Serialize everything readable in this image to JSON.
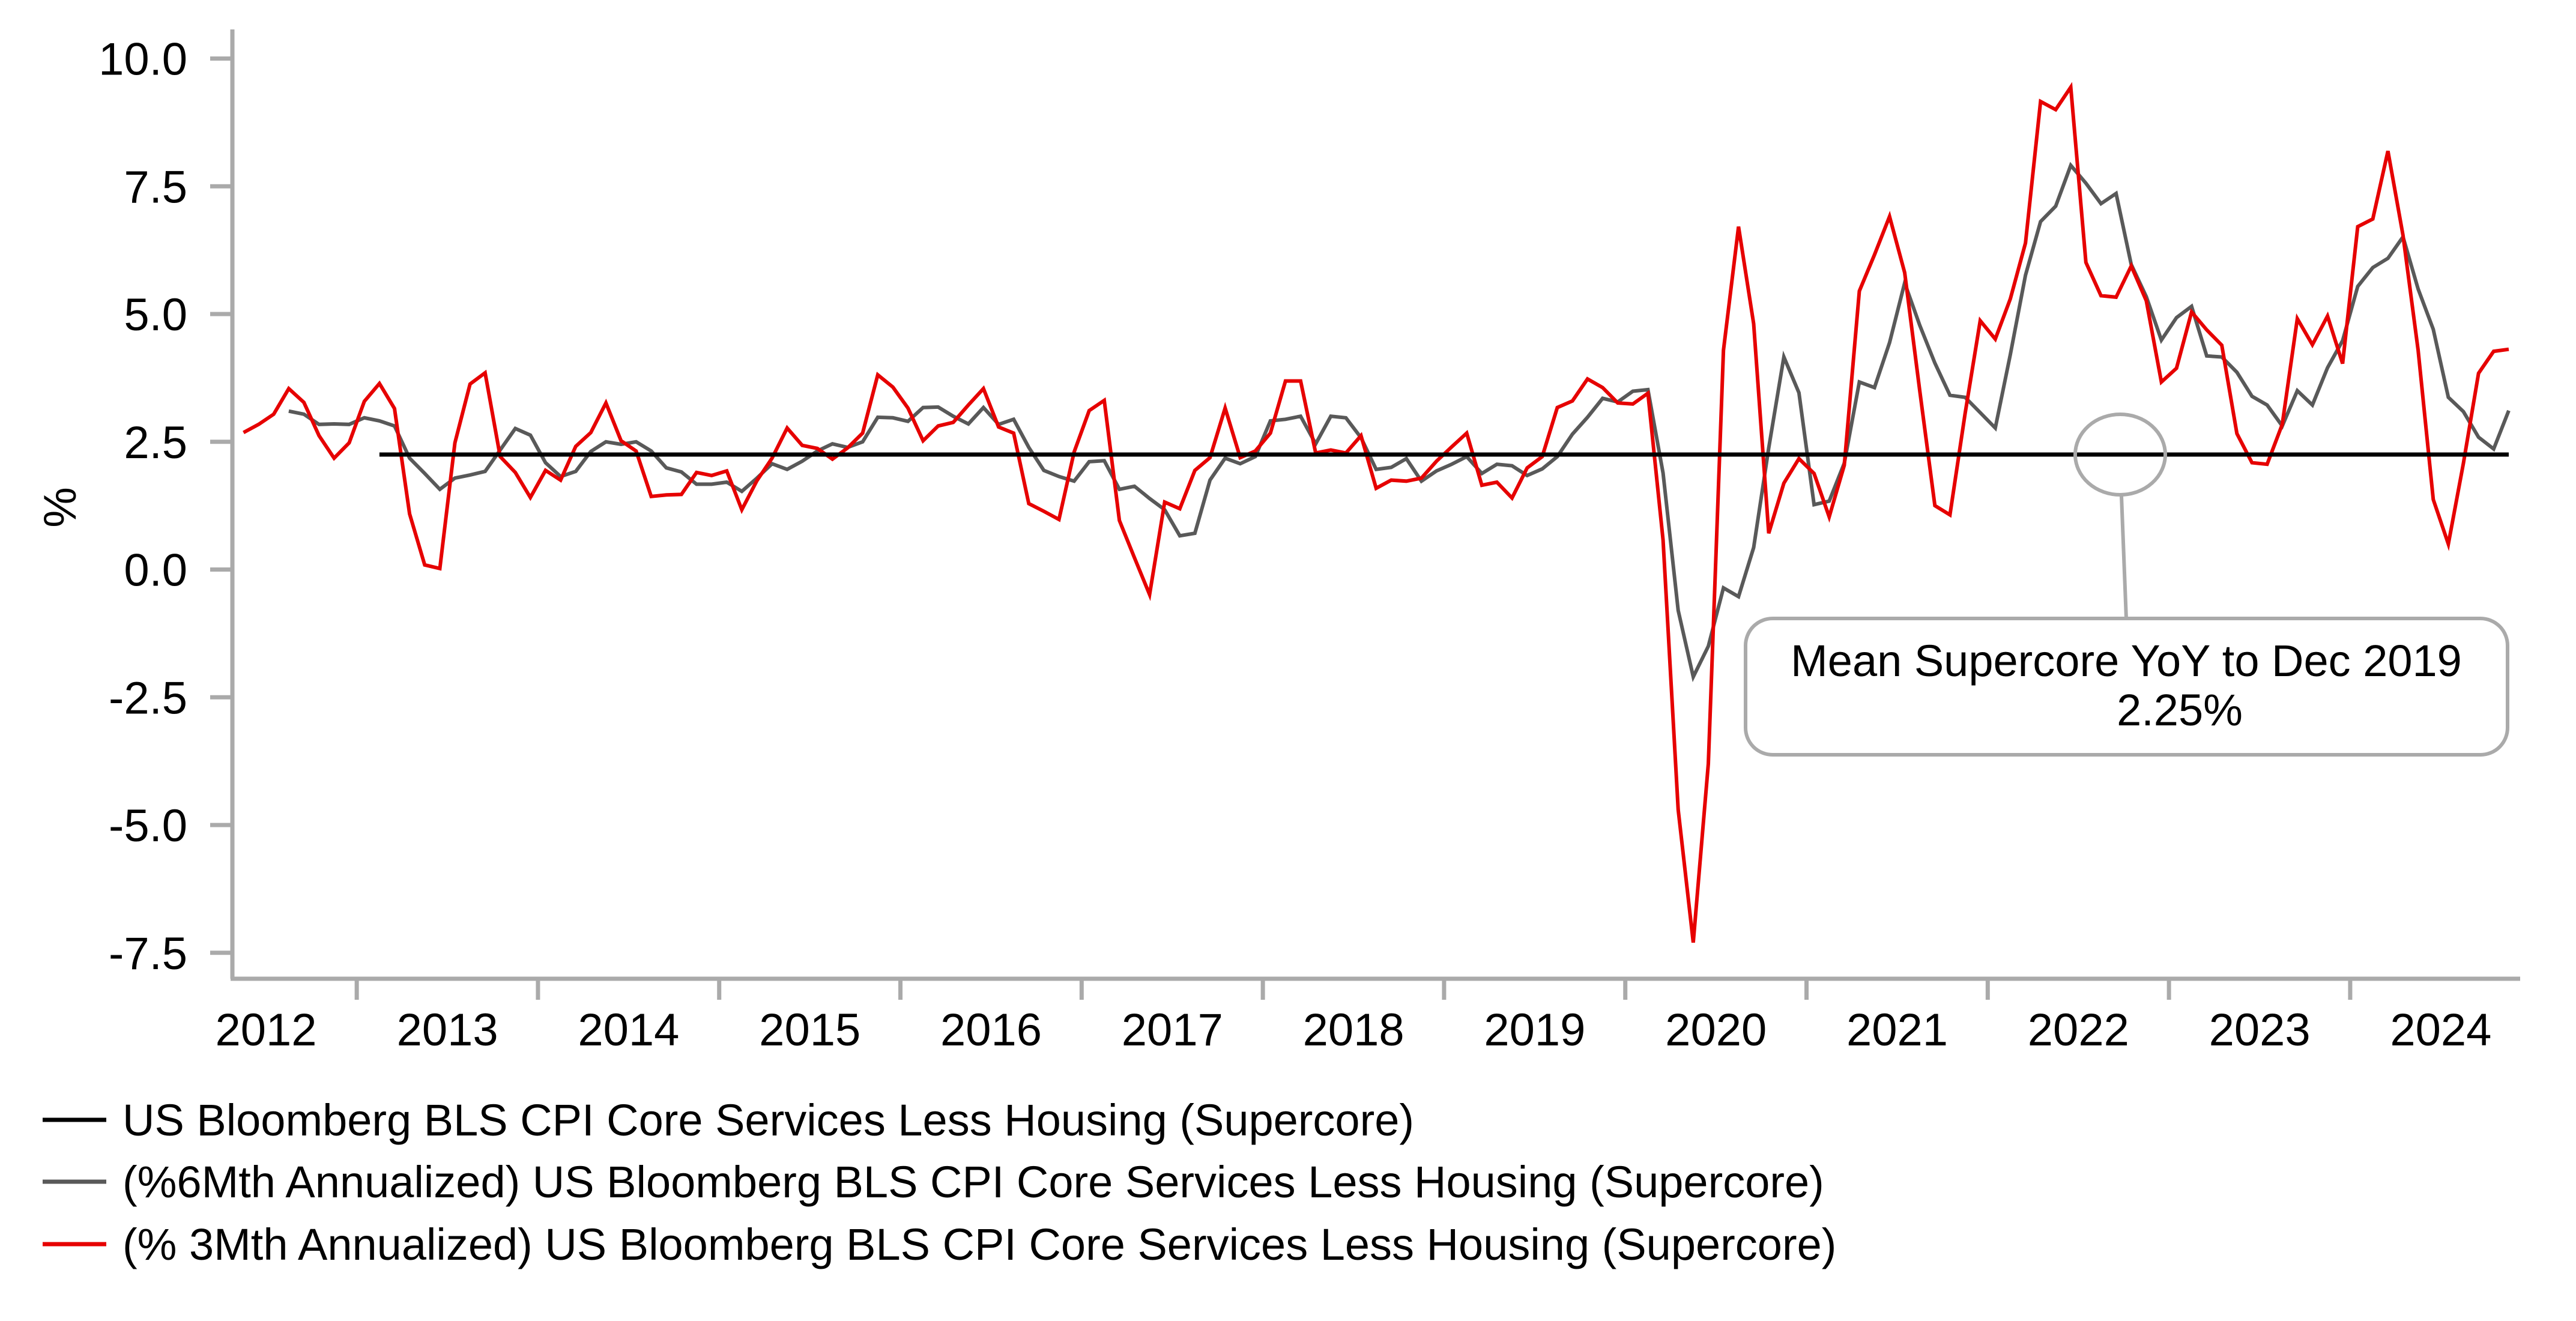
{
  "chart_data": {
    "type": "line",
    "title": "",
    "xlabel": "",
    "ylabel": "%",
    "ylim": [
      -7.5,
      10.0
    ],
    "y_ticks": [
      "10.0",
      "7.5",
      "5.0",
      "2.5",
      "0.0",
      "-2.5",
      "-5.0",
      "-7.5"
    ],
    "x_ticks": [
      "2012",
      "2013",
      "2014",
      "2015",
      "2016",
      "2017",
      "2018",
      "2019",
      "2020",
      "2021",
      "2022",
      "2023",
      "2024"
    ],
    "x_start": "2012-05",
    "x_end": "2024-11",
    "frequency": "monthly",
    "grid": false,
    "legend_position": "bottom-left",
    "series": [
      {
        "name": "US Bloomberg BLS CPI Core Services Less Housing (Supercore)",
        "color": "#000000",
        "start": "2013-02",
        "end": "2024-11",
        "constant_value": 2.25
      },
      {
        "name": "(%6Mth Annualized) US Bloomberg BLS CPI Core Services Less Housing (Supercore)",
        "color": "#595959",
        "start": "2012-05",
        "values": [
          null,
          null,
          null,
          3.1,
          3.04,
          2.84,
          2.85,
          2.84,
          2.97,
          2.91,
          2.81,
          2.18,
          1.88,
          1.57,
          1.79,
          1.85,
          1.92,
          2.34,
          2.76,
          2.63,
          2.09,
          1.82,
          1.92,
          2.31,
          2.5,
          2.45,
          2.5,
          2.32,
          1.99,
          1.91,
          1.67,
          1.67,
          1.71,
          1.53,
          1.79,
          2.07,
          1.96,
          2.12,
          2.32,
          2.46,
          2.39,
          2.5,
          2.98,
          2.97,
          2.9,
          3.17,
          3.18,
          3.0,
          2.85,
          3.17,
          2.84,
          2.94,
          2.39,
          1.94,
          1.82,
          1.73,
          2.11,
          2.13,
          1.57,
          1.63,
          1.39,
          1.17,
          0.66,
          0.71,
          1.75,
          2.18,
          2.07,
          2.21,
          2.91,
          2.94,
          3.0,
          2.46,
          3.0,
          2.97,
          2.58,
          1.96,
          2.0,
          2.17,
          1.73,
          1.93,
          2.06,
          2.21,
          1.88,
          2.06,
          2.03,
          1.84,
          1.97,
          2.21,
          2.65,
          2.98,
          3.35,
          3.28,
          3.49,
          3.52,
          1.89,
          -0.8,
          -2.1,
          -1.5,
          -0.36,
          -0.53,
          0.43,
          2.38,
          4.16,
          3.46,
          1.27,
          1.34,
          2.08,
          3.67,
          3.56,
          4.44,
          5.61,
          4.78,
          4.04,
          3.41,
          3.37,
          3.07,
          2.77,
          4.21,
          5.76,
          6.81,
          7.11,
          7.91,
          7.56,
          7.16,
          7.36,
          5.97,
          5.34,
          4.49,
          4.93,
          5.15,
          4.18,
          4.16,
          3.86,
          3.39,
          3.22,
          2.81,
          3.5,
          3.22,
          3.95,
          4.48,
          5.54,
          5.91,
          6.09,
          6.51,
          5.49,
          4.7,
          3.37,
          3.09,
          2.59,
          2.36,
          3.11
        ]
      },
      {
        "name": "(% 3Mth Annualized) US Bloomberg BLS CPI Core Services Less Housing (Supercore)",
        "color": "#e60000",
        "start": "2012-05",
        "values": [
          2.68,
          2.84,
          3.04,
          3.54,
          3.27,
          2.62,
          2.18,
          2.48,
          3.29,
          3.64,
          3.15,
          1.09,
          0.09,
          0.02,
          2.48,
          3.63,
          3.85,
          2.21,
          1.9,
          1.41,
          1.94,
          1.75,
          2.41,
          2.68,
          3.26,
          2.52,
          2.32,
          1.43,
          1.46,
          1.47,
          1.9,
          1.84,
          1.93,
          1.17,
          1.74,
          2.18,
          2.77,
          2.43,
          2.37,
          2.16,
          2.38,
          2.67,
          3.81,
          3.57,
          3.16,
          2.52,
          2.81,
          2.88,
          3.22,
          3.54,
          2.79,
          2.67,
          1.29,
          1.14,
          0.98,
          2.3,
          3.11,
          3.31,
          0.96,
          0.23,
          -0.49,
          1.32,
          1.19,
          1.94,
          2.19,
          3.16,
          2.19,
          2.32,
          2.67,
          3.69,
          3.69,
          2.28,
          2.34,
          2.28,
          2.62,
          1.59,
          1.75,
          1.73,
          1.79,
          2.12,
          2.4,
          2.67,
          1.65,
          1.71,
          1.4,
          1.99,
          2.21,
          3.17,
          3.3,
          3.73,
          3.56,
          3.26,
          3.24,
          3.45,
          0.58,
          -4.7,
          -7.3,
          -3.8,
          4.29,
          6.71,
          4.81,
          0.71,
          1.69,
          2.17,
          1.88,
          1.03,
          2.04,
          5.45,
          6.16,
          6.91,
          5.81,
          3.5,
          1.25,
          1.07,
          3.05,
          4.87,
          4.51,
          5.3,
          6.39,
          9.16,
          9.0,
          9.44,
          6.01,
          5.36,
          5.33,
          5.94,
          5.26,
          3.67,
          3.94,
          5.04,
          4.69,
          4.39,
          2.66,
          2.09,
          2.06,
          2.84,
          4.91,
          4.4,
          4.96,
          4.03,
          6.71,
          6.86,
          8.19,
          6.54,
          4.29,
          1.37,
          0.5,
          2.08,
          3.84,
          4.27,
          4.31
        ]
      }
    ],
    "annotation": {
      "line1": "Mean Supercore YoY to Dec 2019",
      "line2": "2.25%",
      "target_value": 2.25,
      "target_date": "2022-09",
      "border_color": "#aaaaaa"
    },
    "axis_color": "#aaaaaa"
  }
}
